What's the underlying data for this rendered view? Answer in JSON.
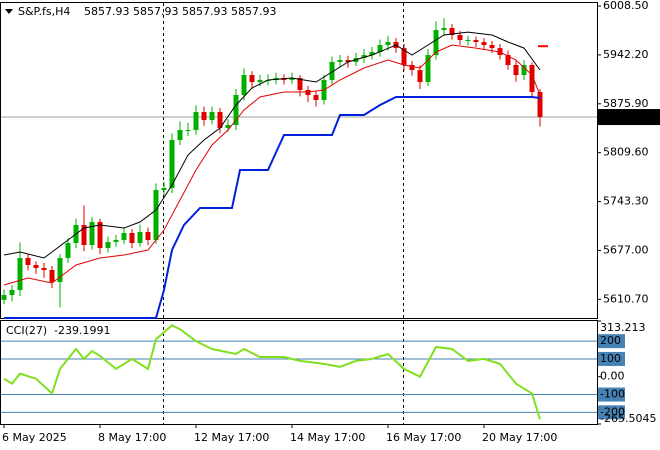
{
  "chart_data": [
    {
      "type": "candlestick",
      "title": "S&P.fs,H4",
      "header_values": [
        5857.93,
        5857.93,
        5857.93,
        5857.93
      ],
      "open": [
        5610.0,
        5616.6,
        5623.4,
        5666.8,
        5657.3,
        5653.2,
        5650.5,
        5634.2,
        5666.8,
        5687.1,
        5711.5,
        5684.4,
        5715.6,
        5680.3,
        5688.5,
        5691.2,
        5700.7,
        5687.1,
        5702.0,
        5691.2,
        5759.0,
        5761.7,
        5826.8,
        5840.4,
        5840.4,
        5864.8,
        5853.9,
        5864.8,
        5843.1,
        5847.1,
        5887.8,
        5914.9,
        5905.4,
        5908.2,
        5908.2,
        5910.9,
        5908.2,
        5910.9,
        5894.6,
        5887.8,
        5881.0,
        5908.2,
        5932.6,
        5935.3,
        5932.6,
        5938.0,
        5942.1,
        5946.1,
        5955.6,
        5959.7,
        5951.5,
        5928.5,
        5921.7,
        5905.4,
        5942.1,
        5976.0,
        5978.7,
        5969.2,
        5962.4,
        5962.4,
        5959.7,
        5955.6,
        5951.5,
        5942.1,
        5928.5,
        5914.9,
        5928.5,
        5891.9
      ],
      "high": [
        5624,
        5630,
        5688,
        5672,
        5662,
        5660,
        5656,
        5672,
        5694,
        5720,
        5738,
        5722,
        5720,
        5696,
        5698,
        5708,
        5706,
        5712,
        5708,
        5768,
        5770,
        5836,
        5852,
        5850,
        5874,
        5872,
        5872,
        5870,
        5855,
        5896,
        5924,
        5920,
        5915,
        5916,
        5918,
        5916,
        5918,
        5915,
        5900,
        5894,
        5915,
        5940,
        5942,
        5941,
        5945,
        5950,
        5953,
        5963,
        5968,
        5965,
        5957,
        5934,
        5928,
        5950,
        5988,
        5992,
        5984,
        5975,
        5968,
        5967,
        5965,
        5961,
        5957,
        5948,
        5934,
        5935,
        5932,
        5896
      ],
      "low": [
        5604,
        5608,
        5615,
        5650,
        5645,
        5640,
        5626,
        5600,
        5660,
        5680,
        5676,
        5678,
        5672,
        5674,
        5682,
        5686,
        5680,
        5682,
        5684,
        5686,
        5752,
        5755,
        5820,
        5832,
        5834,
        5846,
        5848,
        5836,
        5838,
        5840,
        5880,
        5898,
        5900,
        5901,
        5902,
        5902,
        5903,
        5886,
        5878,
        5872,
        5875,
        5902,
        5926,
        5925,
        5927,
        5931,
        5936,
        5940,
        5948,
        5945,
        5921,
        5914,
        5896,
        5900,
        5936,
        5968,
        5963,
        5956,
        5955,
        5953,
        5949,
        5945,
        5936,
        5922,
        5906,
        5908,
        5884,
        5845
      ],
      "close": [
        5616.6,
        5623.4,
        5666.8,
        5657.3,
        5653.2,
        5650.5,
        5634.2,
        5666.8,
        5687.1,
        5711.5,
        5684.4,
        5715.6,
        5680.3,
        5688.5,
        5691.2,
        5700.7,
        5687.1,
        5702.0,
        5691.2,
        5759.0,
        5761.7,
        5826.8,
        5840.4,
        5840.4,
        5864.8,
        5853.9,
        5864.8,
        5843.1,
        5847.1,
        5887.8,
        5914.9,
        5905.4,
        5908.2,
        5908.2,
        5910.9,
        5908.2,
        5910.9,
        5894.6,
        5887.8,
        5881.0,
        5908.2,
        5932.6,
        5935.3,
        5932.6,
        5938.0,
        5942.1,
        5946.1,
        5955.6,
        5959.7,
        5951.5,
        5928.5,
        5921.7,
        5905.4,
        5942.1,
        5976.0,
        5978.7,
        5969.2,
        5962.4,
        5962.4,
        5959.7,
        5955.6,
        5951.5,
        5942.1,
        5928.5,
        5914.9,
        5928.5,
        5891.9,
        5857.93
      ],
      "up_color": "#00b000",
      "down_color": "#e00000",
      "series": [
        {
          "color": "#000000",
          "width": 1,
          "x": [
            0,
            2,
            5,
            8,
            10,
            12,
            15,
            17,
            19,
            21,
            23,
            25,
            27,
            29,
            31,
            33,
            36,
            39,
            41,
            43,
            46,
            49,
            51,
            53,
            55,
            58,
            61,
            63,
            65,
            67
          ],
          "values": [
            5670.9,
            5674.9,
            5666.8,
            5691.2,
            5707.5,
            5711.5,
            5707.5,
            5715.6,
            5731.9,
            5765.8,
            5806.5,
            5826.8,
            5843.1,
            5874.3,
            5897.3,
            5908.2,
            5910.9,
            5905.4,
            5919.0,
            5932.6,
            5942.1,
            5955.6,
            5942.1,
            5955.6,
            5969.2,
            5973.2,
            5969.2,
            5959.7,
            5951.5,
            5921.7
          ]
        },
        {
          "color": "#e00000",
          "width": 1,
          "x": [
            0,
            3,
            6,
            9,
            12,
            15,
            18,
            20,
            22,
            24,
            26,
            28,
            30,
            32,
            35,
            38,
            40,
            42,
            45,
            48,
            50,
            52,
            54,
            56,
            59,
            62,
            64,
            66,
            67
          ],
          "values": [
            5630.2,
            5639.7,
            5632.9,
            5657.3,
            5666.8,
            5670.9,
            5677.6,
            5704.8,
            5745.4,
            5786.1,
            5820.0,
            5840.4,
            5867.5,
            5885.1,
            5891.9,
            5891.9,
            5894.6,
            5908.2,
            5924.4,
            5935.3,
            5928.5,
            5924.4,
            5946.1,
            5955.6,
            5951.5,
            5946.1,
            5935.3,
            5914.9,
            5887.8
          ]
        },
        {
          "color": "#0022dd",
          "width": 2,
          "x": [
            0,
            19,
            20,
            21,
            22.5,
            24.5,
            28.5,
            29.5,
            33,
            35,
            41,
            42,
            45,
            47,
            49,
            66,
            67
          ],
          "values": [
            5585.4,
            5585.4,
            5623.4,
            5677.6,
            5711.5,
            5734.6,
            5734.6,
            5786.1,
            5786.1,
            5833.6,
            5833.6,
            5860.7,
            5860.7,
            5874.3,
            5885.1,
            5885.1,
            5883.7
          ]
        }
      ],
      "last_price": 5857.93,
      "level_marker": 5954,
      "level_marker_color": "#ff0000",
      "ylim": [
        5585.4,
        6012.6
      ],
      "yticks": [
        {
          "value": 6008.5,
          "label": "6008.50"
        },
        {
          "value": 5942.2,
          "label": "5942.20"
        },
        {
          "value": 5875.9,
          "label": "5875.90"
        },
        {
          "value": 5809.6,
          "label": "5809.60"
        },
        {
          "value": 5743.3,
          "label": "5743.30"
        },
        {
          "value": 5677.0,
          "label": "5677.00"
        },
        {
          "value": 5610.7,
          "label": "5610.70"
        }
      ],
      "xticks": [
        {
          "value": 0,
          "label": "6 May 2025"
        },
        {
          "value": 12,
          "label": "8 May 17:00"
        },
        {
          "value": 24,
          "label": "12 May 17:00"
        },
        {
          "value": 36,
          "label": "14 May 17:00"
        },
        {
          "value": 48,
          "label": "16 May 17:00"
        },
        {
          "value": 60,
          "label": "20 May 17:00"
        }
      ]
    },
    {
      "type": "line",
      "title": "CCI(27)",
      "current": -239.1991,
      "series": [
        {
          "color": "#80e020",
          "width": 2,
          "x": [
            0,
            1,
            2,
            4,
            6,
            7,
            9,
            10,
            11,
            12,
            14,
            16,
            18,
            19,
            21,
            22,
            24,
            26,
            29,
            30,
            32,
            35,
            37,
            40,
            42,
            44,
            46,
            48,
            50,
            52,
            54,
            56,
            58,
            60,
            62,
            64,
            66,
            67
          ],
          "values": [
            -11,
            -39,
            17,
            -11,
            -94,
            44,
            156,
            100,
            144,
            117,
            44,
            100,
            44,
            211,
            289,
            267,
            200,
            156,
            128,
            156,
            111,
            111,
            89,
            72,
            56,
            89,
            100,
            128,
            44,
            0,
            167,
            156,
            89,
            100,
            72,
            -39,
            -94,
            -239.1991
          ]
        }
      ],
      "levels": [
        200,
        100,
        -100,
        -200
      ],
      "level_color": "#4682b4",
      "ylim": [
        -265.5045,
        313.213
      ],
      "yticks": [
        313.213,
        200,
        100,
        {
          "value": 0,
          "label": "0.00"
        },
        -100,
        -200,
        -265.5045
      ]
    }
  ]
}
